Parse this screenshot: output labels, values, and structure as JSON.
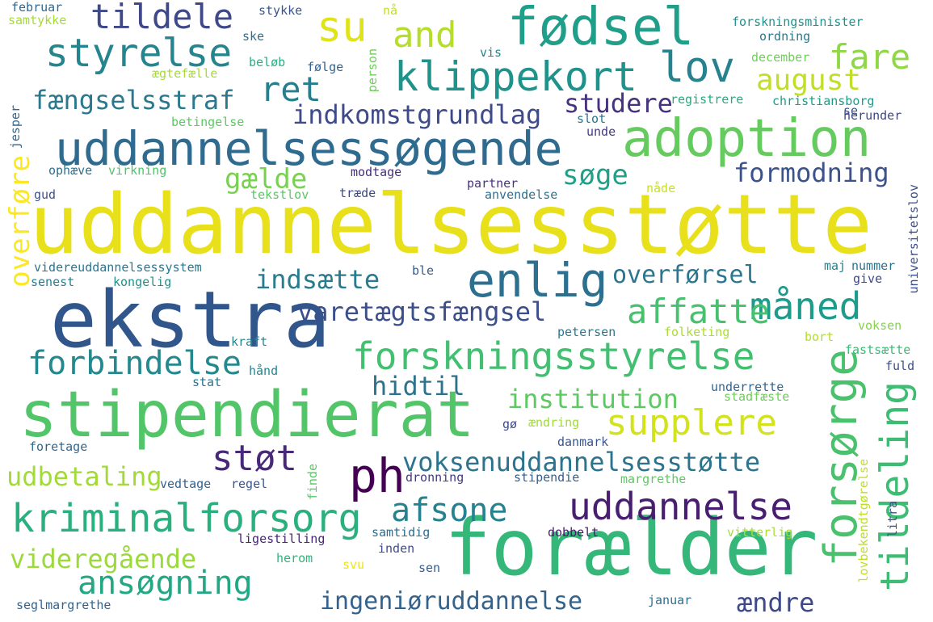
{
  "words": [
    {
      "text": "uddannelsesstøtte",
      "color": "#e8e01b"
    },
    {
      "text": "forælder",
      "color": "#35b779"
    },
    {
      "text": "ekstra",
      "color": "#31568c"
    },
    {
      "text": "stipendierat",
      "color": "#52c569"
    },
    {
      "text": "uddannelsessøgende",
      "color": "#2e6b8e"
    },
    {
      "text": "adoption",
      "color": "#65cb5e"
    },
    {
      "text": "fødsel",
      "color": "#1f9e89"
    },
    {
      "text": "forskningsstyrelse",
      "color": "#43bf71"
    },
    {
      "text": "kriminalforsorg",
      "color": "#2ab07f"
    },
    {
      "text": "enlig",
      "color": "#2d6f8e"
    },
    {
      "text": "klippekort",
      "color": "#20928c"
    },
    {
      "text": "styrelse",
      "color": "#25858e"
    },
    {
      "text": "tildele",
      "color": "#3f4889"
    },
    {
      "text": "su",
      "color": "#dfe318"
    },
    {
      "text": "and",
      "color": "#b5de2b"
    },
    {
      "text": "lov",
      "color": "#26828e"
    },
    {
      "text": "fare",
      "color": "#8fd744"
    },
    {
      "text": "ret",
      "color": "#277f8e"
    },
    {
      "text": "august",
      "color": "#c0df25"
    },
    {
      "text": "fængselsstraf",
      "color": "#2a788e"
    },
    {
      "text": "studere",
      "color": "#46327e"
    },
    {
      "text": "indkomstgrundlag",
      "color": "#3e4a89"
    },
    {
      "text": "formodning",
      "color": "#3b528b"
    },
    {
      "text": "søge",
      "color": "#1fa088"
    },
    {
      "text": "gælde",
      "color": "#7ad151"
    },
    {
      "text": "overføre",
      "color": "#fbe723"
    },
    {
      "text": "måned",
      "color": "#1e9b8a"
    },
    {
      "text": "affatte",
      "color": "#48c16e"
    },
    {
      "text": "indsætte",
      "color": "#287c8e"
    },
    {
      "text": "overførsel",
      "color": "#2a768e"
    },
    {
      "text": "varetægtsfængsel",
      "color": "#3c4f8a"
    },
    {
      "text": "forbindelse",
      "color": "#23898e"
    },
    {
      "text": "hidtil",
      "color": "#2c728e"
    },
    {
      "text": "institution",
      "color": "#5ec962"
    },
    {
      "text": "supplere",
      "color": "#d2e21b"
    },
    {
      "text": "forsørge",
      "color": "#4ac16d"
    },
    {
      "text": "tildeling",
      "color": "#3dbc74"
    },
    {
      "text": "støt",
      "color": "#482878"
    },
    {
      "text": "ph",
      "color": "#440154"
    },
    {
      "text": "voksenuddannelsesstøtte",
      "color": "#2c738e"
    },
    {
      "text": "udbetaling",
      "color": "#a2da37"
    },
    {
      "text": "uddannelse",
      "color": "#481f70"
    },
    {
      "text": "afsone",
      "color": "#26828e"
    },
    {
      "text": "videregående",
      "color": "#9bd93c"
    },
    {
      "text": "ansøgning",
      "color": "#22a884"
    },
    {
      "text": "ingeniøruddannelse",
      "color": "#33638d"
    },
    {
      "text": "ændre",
      "color": "#3e4989"
    },
    {
      "text": "samtykke",
      "color": "#a5db36"
    },
    {
      "text": "februar",
      "color": "#31668e"
    },
    {
      "text": "stykke",
      "color": "#39568c"
    },
    {
      "text": "nå",
      "color": "#c2df23"
    },
    {
      "text": "ske",
      "color": "#2e6e8e"
    },
    {
      "text": "beløb",
      "color": "#29af7f"
    },
    {
      "text": "følge",
      "color": "#34618d"
    },
    {
      "text": "vis",
      "color": "#24868e"
    },
    {
      "text": "ægtefælle",
      "color": "#a8db34"
    },
    {
      "text": "person",
      "color": "#6ece58"
    },
    {
      "text": "forskningsminister",
      "color": "#21918c"
    },
    {
      "text": "ordning",
      "color": "#2a788e"
    },
    {
      "text": "december",
      "color": "#70cf57"
    },
    {
      "text": "registrere",
      "color": "#25ab82"
    },
    {
      "text": "christiansborg",
      "color": "#1e9c89"
    },
    {
      "text": "se",
      "color": "#3a538b"
    },
    {
      "text": "herunder",
      "color": "#3f4788"
    },
    {
      "text": "slot",
      "color": "#2d708e"
    },
    {
      "text": "betingelse",
      "color": "#5cc863"
    },
    {
      "text": "unde",
      "color": "#443a83"
    },
    {
      "text": "jesper",
      "color": "#31678e"
    },
    {
      "text": "ophæve",
      "color": "#2e6f8e"
    },
    {
      "text": "virkning",
      "color": "#4fc46a"
    },
    {
      "text": "modtage",
      "color": "#472f7d"
    },
    {
      "text": "gud",
      "color": "#3b518b"
    },
    {
      "text": "tekstlov",
      "color": "#5ac864"
    },
    {
      "text": "træde",
      "color": "#3e4989"
    },
    {
      "text": "partner",
      "color": "#46337e"
    },
    {
      "text": "anvendelse",
      "color": "#2c718e"
    },
    {
      "text": "nåde",
      "color": "#cae11f"
    },
    {
      "text": "universitetslov",
      "color": "#3c4f8a"
    },
    {
      "text": "videreuddannelsessystem",
      "color": "#2a778e"
    },
    {
      "text": "senest",
      "color": "#287d8e"
    },
    {
      "text": "kongelig",
      "color": "#21908d"
    },
    {
      "text": "ble",
      "color": "#365c8d"
    },
    {
      "text": "maj",
      "color": "#26818e"
    },
    {
      "text": "nummer",
      "color": "#2c728e"
    },
    {
      "text": "give",
      "color": "#3e4a89"
    },
    {
      "text": "voksen",
      "color": "#84d44b"
    },
    {
      "text": "petersen",
      "color": "#2a788e"
    },
    {
      "text": "folketing",
      "color": "#aadc32"
    },
    {
      "text": "bort",
      "color": "#b2dd2d"
    },
    {
      "text": "fastsætte",
      "color": "#3bbb75"
    },
    {
      "text": "kraft",
      "color": "#24878e"
    },
    {
      "text": "hånd",
      "color": "#25848e"
    },
    {
      "text": "fuld",
      "color": "#3b518b"
    },
    {
      "text": "stat",
      "color": "#2b748e"
    },
    {
      "text": "underrette",
      "color": "#31668e"
    },
    {
      "text": "stadfæste",
      "color": "#6ece58"
    },
    {
      "text": "gø",
      "color": "#3f4788"
    },
    {
      "text": "ændring",
      "color": "#a0da39"
    },
    {
      "text": "lovbekendtgørelse",
      "color": "#bddf26"
    },
    {
      "text": "foretage",
      "color": "#31678e"
    },
    {
      "text": "danmark",
      "color": "#39568c"
    },
    {
      "text": "vedtage",
      "color": "#33628d"
    },
    {
      "text": "regel",
      "color": "#3a548c"
    },
    {
      "text": "finde",
      "color": "#5ac864"
    },
    {
      "text": "dronning",
      "color": "#453781"
    },
    {
      "text": "stipendie",
      "color": "#355f8d"
    },
    {
      "text": "margrethe",
      "color": "#5ec962"
    },
    {
      "text": "litra",
      "color": "#3b528b"
    },
    {
      "text": "ligestilling",
      "color": "#482576"
    },
    {
      "text": "samtidig",
      "color": "#2f6c8e"
    },
    {
      "text": "dobbelt",
      "color": "#48186a"
    },
    {
      "text": "vitterlig",
      "color": "#addc30"
    },
    {
      "text": "herom",
      "color": "#2fb47c"
    },
    {
      "text": "inden",
      "color": "#3e4c8a"
    },
    {
      "text": "svu",
      "color": "#ece51b"
    },
    {
      "text": "sen",
      "color": "#365d8d"
    },
    {
      "text": "seglmargrethe",
      "color": "#33638d"
    },
    {
      "text": "januar",
      "color": "#2e6e8e"
    }
  ]
}
